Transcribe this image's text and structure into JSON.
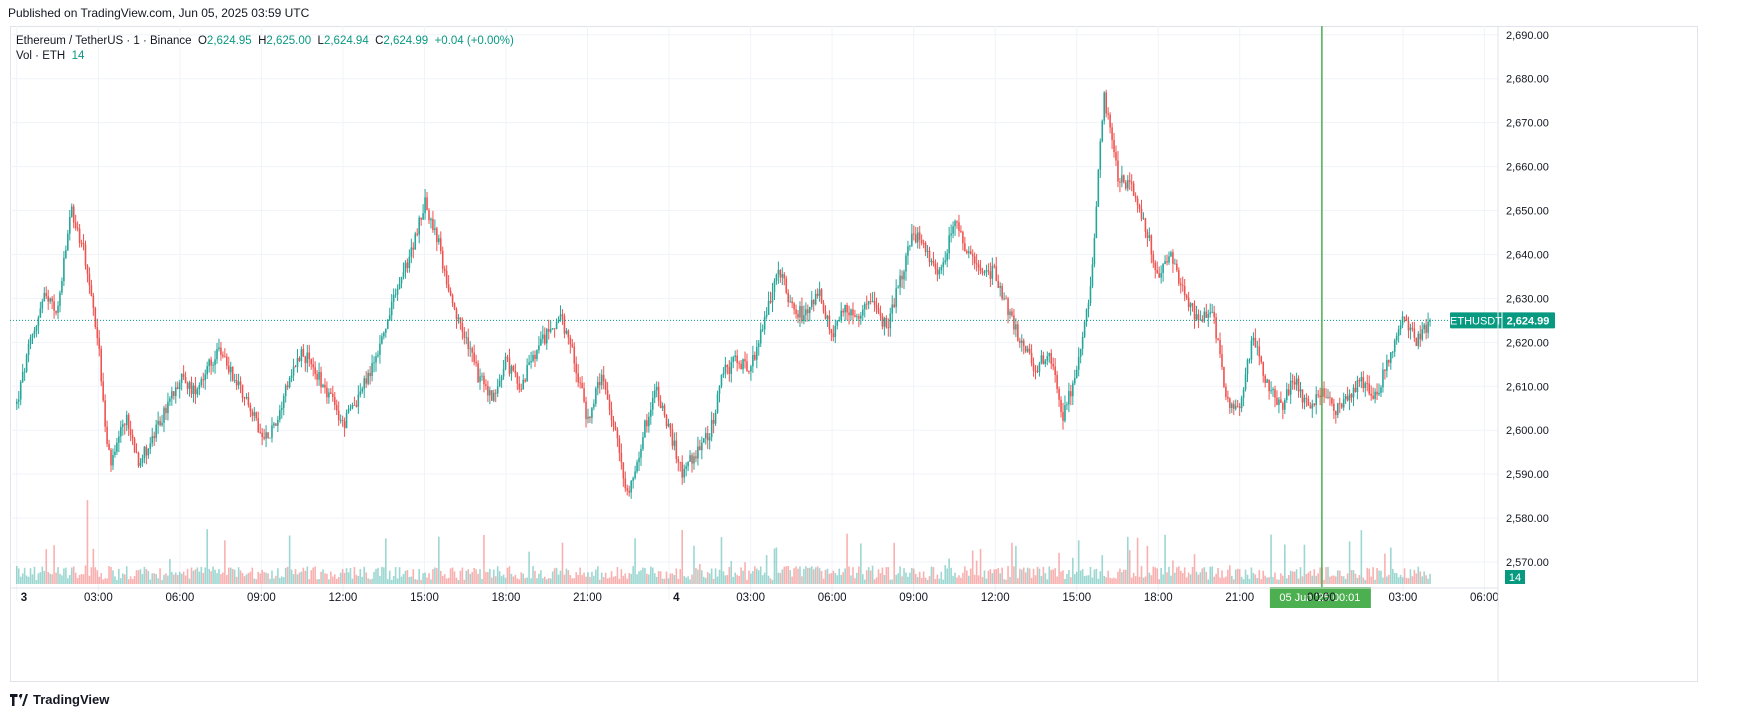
{
  "header": {
    "published": "Published on TradingView.com, Jun 05, 2025 03:59 UTC"
  },
  "legend": {
    "symbol": "Ethereum / TetherUS · 1 · Binance",
    "o_label": "O",
    "o_value": "2,624.95",
    "h_label": "H",
    "h_value": "2,625.00",
    "l_label": "L",
    "l_value": "2,624.94",
    "c_label": "C",
    "c_value": "2,624.99",
    "change": "+0.04 (+0.00%)",
    "vol_label": "Vol · ETH",
    "vol_value": "14"
  },
  "price_badge": {
    "label": "ETHUSDT",
    "value": "2,624.99"
  },
  "volume_badge": "14",
  "crosshair_badge": "05 Jun '25   00:01",
  "footer": {
    "brand": "TradingView"
  },
  "colors": {
    "up": "#26a69a",
    "down": "#ef5350",
    "grid": "#f0f3fa",
    "crosshair": "#4caf50",
    "badge": "#089981"
  },
  "chart_data": {
    "type": "candlestick",
    "symbol": "ETHUSDT",
    "interval": "1",
    "ylim": [
      2565,
      2692
    ],
    "y_ticks": [
      "2,570.00",
      "2,580.00",
      "2,590.00",
      "2,600.00",
      "2,610.00",
      "2,620.00",
      "2,630.00",
      "2,640.00",
      "2,650.00",
      "2,660.00",
      "2,670.00",
      "2,680.00",
      "2,690.00"
    ],
    "y_tick_values": [
      2570,
      2580,
      2590,
      2600,
      2610,
      2620,
      2630,
      2640,
      2650,
      2660,
      2670,
      2680,
      2690
    ],
    "x_ticks": [
      "3",
      "03:00",
      "06:00",
      "09:00",
      "12:00",
      "15:00",
      "18:00",
      "21:00",
      "4",
      "03:00",
      "06:00",
      "09:00",
      "12:00",
      "15:00",
      "18:00",
      "21:00",
      "00:00",
      "03:00",
      "06:00"
    ],
    "x_tick_hours": [
      0,
      3,
      6,
      9,
      12,
      15,
      18,
      21,
      24,
      27,
      30,
      33,
      36,
      39,
      42,
      45,
      48,
      51,
      54
    ],
    "x_range_hours": [
      -0.25,
      54.5
    ],
    "last_hour": 52.0,
    "last_price": 2624.99,
    "crosshair_hour": 48.02,
    "close_path": [
      [
        0.0,
        2606
      ],
      [
        0.5,
        2620
      ],
      [
        1.0,
        2630
      ],
      [
        1.5,
        2627
      ],
      [
        2.0,
        2650
      ],
      [
        2.5,
        2640
      ],
      [
        3.0,
        2620
      ],
      [
        3.3,
        2597
      ],
      [
        3.5,
        2592
      ],
      [
        4.0,
        2603
      ],
      [
        4.5,
        2593
      ],
      [
        5.0,
        2598
      ],
      [
        5.5,
        2605
      ],
      [
        6.0,
        2612
      ],
      [
        6.5,
        2609
      ],
      [
        7.0,
        2614
      ],
      [
        7.5,
        2618
      ],
      [
        8.0,
        2612
      ],
      [
        8.5,
        2607
      ],
      [
        9.0,
        2598
      ],
      [
        9.5,
        2601
      ],
      [
        10.0,
        2612
      ],
      [
        10.5,
        2618
      ],
      [
        11.0,
        2613
      ],
      [
        11.5,
        2608
      ],
      [
        12.0,
        2601
      ],
      [
        12.5,
        2607
      ],
      [
        13.0,
        2613
      ],
      [
        13.5,
        2622
      ],
      [
        14.0,
        2632
      ],
      [
        14.5,
        2640
      ],
      [
        15.0,
        2652
      ],
      [
        15.5,
        2643
      ],
      [
        16.0,
        2628
      ],
      [
        16.5,
        2621
      ],
      [
        17.0,
        2612
      ],
      [
        17.5,
        2607
      ],
      [
        18.0,
        2616
      ],
      [
        18.5,
        2610
      ],
      [
        19.0,
        2616
      ],
      [
        19.5,
        2622
      ],
      [
        20.0,
        2626
      ],
      [
        20.5,
        2617
      ],
      [
        21.0,
        2602
      ],
      [
        21.5,
        2612
      ],
      [
        22.0,
        2600
      ],
      [
        22.5,
        2585
      ],
      [
        23.0,
        2598
      ],
      [
        23.5,
        2610
      ],
      [
        24.0,
        2600
      ],
      [
        24.5,
        2590
      ],
      [
        25.0,
        2595
      ],
      [
        25.5,
        2599
      ],
      [
        26.0,
        2613
      ],
      [
        26.5,
        2616
      ],
      [
        27.0,
        2614
      ],
      [
        27.5,
        2624
      ],
      [
        28.0,
        2638
      ],
      [
        28.5,
        2628
      ],
      [
        29.0,
        2626
      ],
      [
        29.5,
        2632
      ],
      [
        30.0,
        2621
      ],
      [
        30.5,
        2628
      ],
      [
        31.0,
        2626
      ],
      [
        31.5,
        2630
      ],
      [
        32.0,
        2623
      ],
      [
        32.5,
        2634
      ],
      [
        33.0,
        2645
      ],
      [
        33.5,
        2640
      ],
      [
        34.0,
        2636
      ],
      [
        34.5,
        2648
      ],
      [
        35.0,
        2640
      ],
      [
        35.5,
        2636
      ],
      [
        36.0,
        2636
      ],
      [
        36.5,
        2627
      ],
      [
        37.0,
        2619
      ],
      [
        37.5,
        2614
      ],
      [
        38.0,
        2618
      ],
      [
        38.5,
        2603
      ],
      [
        39.0,
        2614
      ],
      [
        39.5,
        2632
      ],
      [
        40.0,
        2676
      ],
      [
        40.5,
        2658
      ],
      [
        41.0,
        2655
      ],
      [
        41.5,
        2647
      ],
      [
        42.0,
        2635
      ],
      [
        42.5,
        2640
      ],
      [
        43.0,
        2630
      ],
      [
        43.5,
        2624
      ],
      [
        44.0,
        2628
      ],
      [
        44.5,
        2606
      ],
      [
        45.0,
        2605
      ],
      [
        45.5,
        2622
      ],
      [
        46.0,
        2610
      ],
      [
        46.5,
        2605
      ],
      [
        47.0,
        2612
      ],
      [
        47.5,
        2605
      ],
      [
        48.0,
        2609
      ],
      [
        48.5,
        2604
      ],
      [
        49.0,
        2608
      ],
      [
        49.5,
        2611
      ],
      [
        50.0,
        2608
      ],
      [
        50.5,
        2616
      ],
      [
        51.0,
        2627
      ],
      [
        51.5,
        2620
      ],
      [
        52.0,
        2625
      ]
    ],
    "volume_ylim": [
      0,
      180
    ]
  }
}
